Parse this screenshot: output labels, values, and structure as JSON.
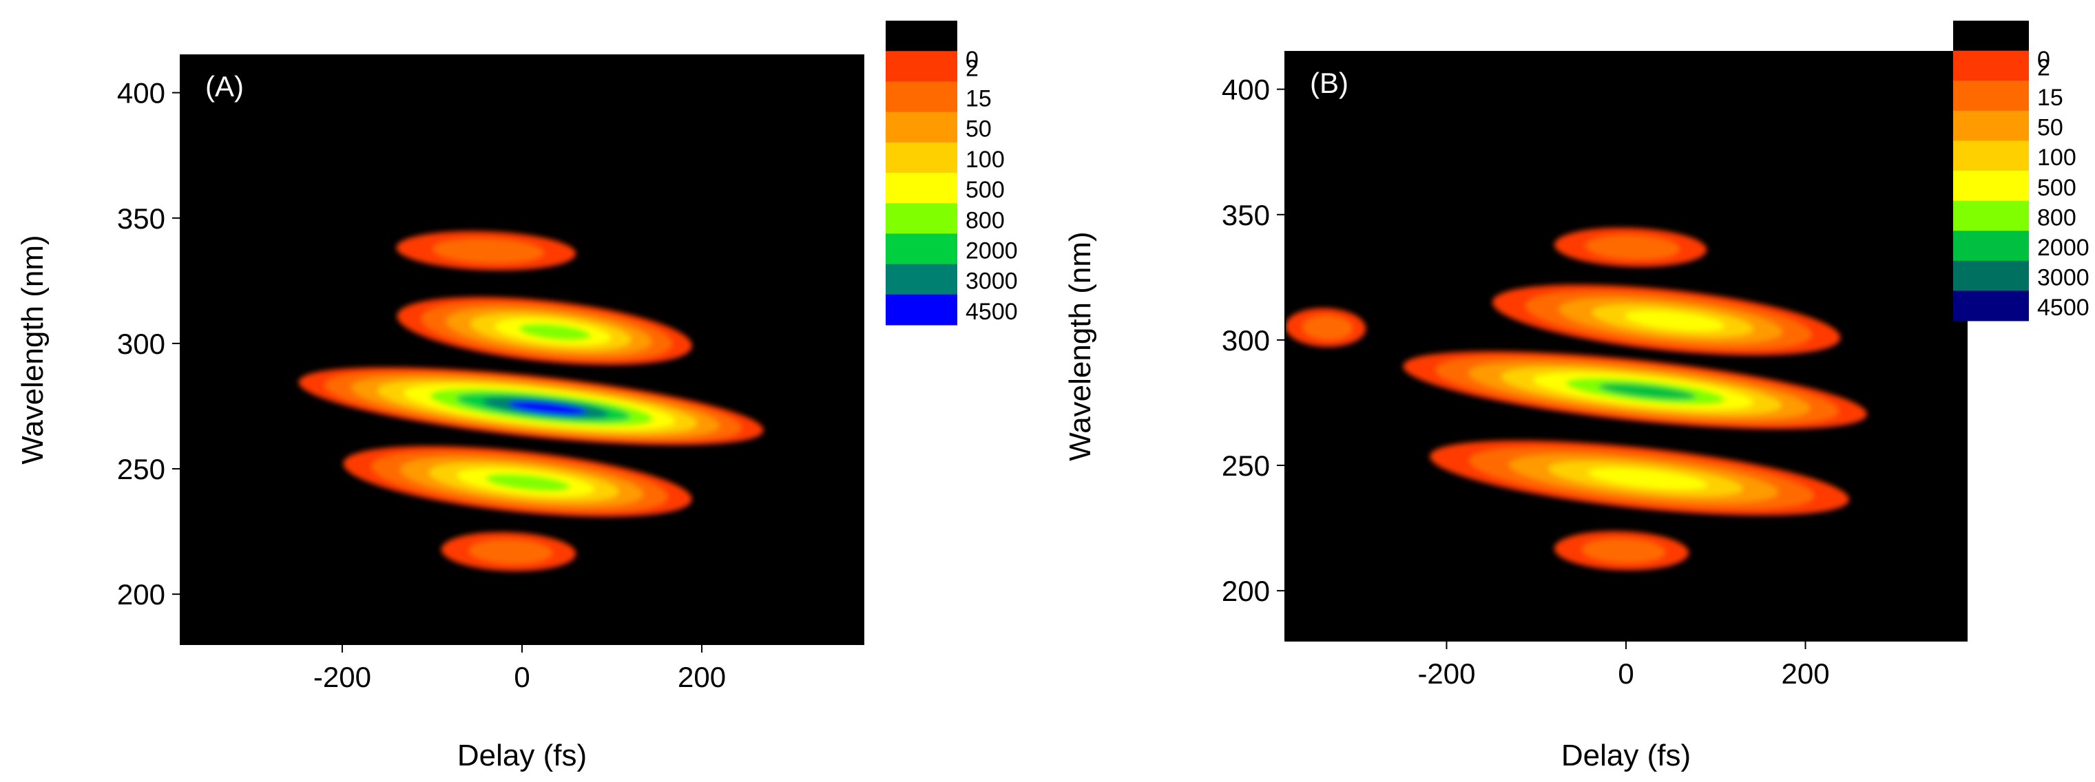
{
  "colormap": {
    "levels": [
      "0",
      "2",
      "15",
      "50",
      "100",
      "500",
      "800",
      "2000",
      "3000",
      "4500"
    ]
  },
  "chart_data": [
    {
      "type": "heatmap",
      "panel_label": "(A)",
      "xlabel": "Delay (fs)",
      "ylabel": "Wavelength (nm)",
      "xlim": [
        -380,
        380
      ],
      "ylim": [
        180,
        415
      ],
      "x_ticks": [
        -200,
        0,
        200
      ],
      "y_ticks": [
        200,
        250,
        300,
        350,
        400
      ],
      "grid": false,
      "legend": "right",
      "color_levels": [
        0,
        2,
        15,
        50,
        100,
        500,
        800,
        2000,
        3000,
        4500
      ],
      "colors": [
        "#000000",
        "#ff3a00",
        "#ff6a00",
        "#ff9a00",
        "#ffd000",
        "#ffff00",
        "#80ff00",
        "#00d040",
        "#008070",
        "#0000ff"
      ],
      "bands": [
        {
          "center_wavelength": 337,
          "delay_range": [
            -140,
            60
          ],
          "peak": 15
        },
        {
          "center_wavelength": 305,
          "delay_range": [
            -140,
            190
          ],
          "peak": 800
        },
        {
          "center_wavelength": 275,
          "delay_range": [
            -250,
            270
          ],
          "peak": 4500
        },
        {
          "center_wavelength": 245,
          "delay_range": [
            -200,
            190
          ],
          "peak": 800
        },
        {
          "center_wavelength": 217,
          "delay_range": [
            -90,
            60
          ],
          "peak": 15
        }
      ]
    },
    {
      "type": "heatmap",
      "panel_label": "(B)",
      "xlabel": "Delay (fs)",
      "ylabel": "Wavelength (nm)",
      "xlim": [
        -380,
        380
      ],
      "ylim": [
        180,
        415
      ],
      "x_ticks": [
        -200,
        0,
        200
      ],
      "y_ticks": [
        200,
        250,
        300,
        350,
        400
      ],
      "grid": false,
      "legend": "right",
      "color_levels": [
        0,
        2,
        15,
        50,
        100,
        500,
        800,
        2000,
        3000,
        4500
      ],
      "colors": [
        "#000000",
        "#ff3a00",
        "#ff6a00",
        "#ff9a00",
        "#ffd000",
        "#ffff00",
        "#80ff00",
        "#00c040",
        "#007060",
        "#000080"
      ],
      "bands": [
        {
          "center_wavelength": 337,
          "delay_range": [
            -80,
            90
          ],
          "peak": 15
        },
        {
          "center_wavelength": 308,
          "delay_range": [
            -150,
            240
          ],
          "peak": 500
        },
        {
          "center_wavelength": 280,
          "delay_range": [
            -250,
            270
          ],
          "peak": 2000
        },
        {
          "center_wavelength": 245,
          "delay_range": [
            -220,
            250
          ],
          "peak": 500
        },
        {
          "center_wavelength": 216,
          "delay_range": [
            -80,
            70
          ],
          "peak": 15
        },
        {
          "center_wavelength": 305,
          "delay_range": [
            -380,
            -290
          ],
          "peak": 15
        }
      ]
    }
  ]
}
